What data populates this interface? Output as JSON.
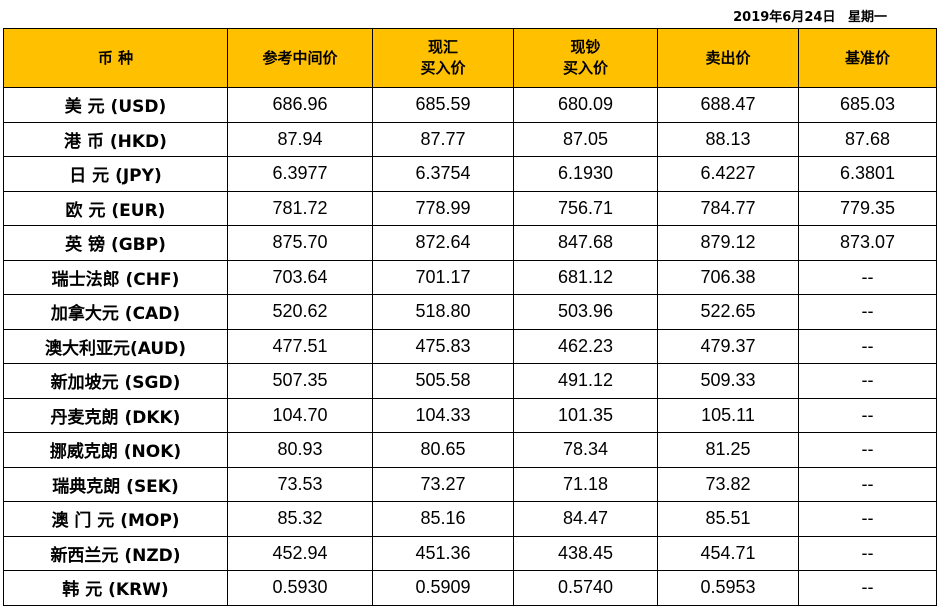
{
  "date": {
    "date_text": "2019年6月24日",
    "weekday": "星期一"
  },
  "table": {
    "headers": [
      {
        "lines": [
          "币  种"
        ]
      },
      {
        "lines": [
          "参考中间价"
        ]
      },
      {
        "lines": [
          "现汇",
          "买入价"
        ]
      },
      {
        "lines": [
          "现钞",
          "买入价"
        ]
      },
      {
        "lines": [
          "卖出价"
        ]
      },
      {
        "lines": [
          "基准价"
        ]
      }
    ],
    "rows": [
      [
        "美  元 (USD)",
        "686.96",
        "685.59",
        "680.09",
        "688.47",
        "685.03"
      ],
      [
        "港  币 (HKD)",
        "87.94",
        "87.77",
        "87.05",
        "88.13",
        "87.68"
      ],
      [
        "日  元 (JPY)",
        "6.3977",
        "6.3754",
        "6.1930",
        "6.4227",
        "6.3801"
      ],
      [
        "欧  元 (EUR)",
        "781.72",
        "778.99",
        "756.71",
        "784.77",
        "779.35"
      ],
      [
        "英  镑 (GBP)",
        "875.70",
        "872.64",
        "847.68",
        "879.12",
        "873.07"
      ],
      [
        "瑞士法郎 (CHF)",
        "703.64",
        "701.17",
        "681.12",
        "706.38",
        "--"
      ],
      [
        "加拿大元 (CAD)",
        "520.62",
        "518.80",
        "503.96",
        "522.65",
        "--"
      ],
      [
        "澳大利亚元(AUD)",
        "477.51",
        "475.83",
        "462.23",
        "479.37",
        "--"
      ],
      [
        "新加坡元 (SGD)",
        "507.35",
        "505.58",
        "491.12",
        "509.33",
        "--"
      ],
      [
        "丹麦克朗 (DKK)",
        "104.70",
        "104.33",
        "101.35",
        "105.11",
        "--"
      ],
      [
        "挪威克朗 (NOK)",
        "80.93",
        "80.65",
        "78.34",
        "81.25",
        "--"
      ],
      [
        "瑞典克朗 (SEK)",
        "73.53",
        "73.27",
        "71.18",
        "73.82",
        "--"
      ],
      [
        "澳 门 元 (MOP)",
        "85.32",
        "85.16",
        "84.47",
        "85.51",
        "--"
      ],
      [
        "新西兰元 (NZD)",
        "452.94",
        "451.36",
        "438.45",
        "454.71",
        "--"
      ],
      [
        "韩  元 (KRW)",
        "0.5930",
        "0.5909",
        "0.5740",
        "0.5953",
        "--"
      ]
    ]
  },
  "colors": {
    "header_background": "#ffc000",
    "border": "#000000"
  }
}
